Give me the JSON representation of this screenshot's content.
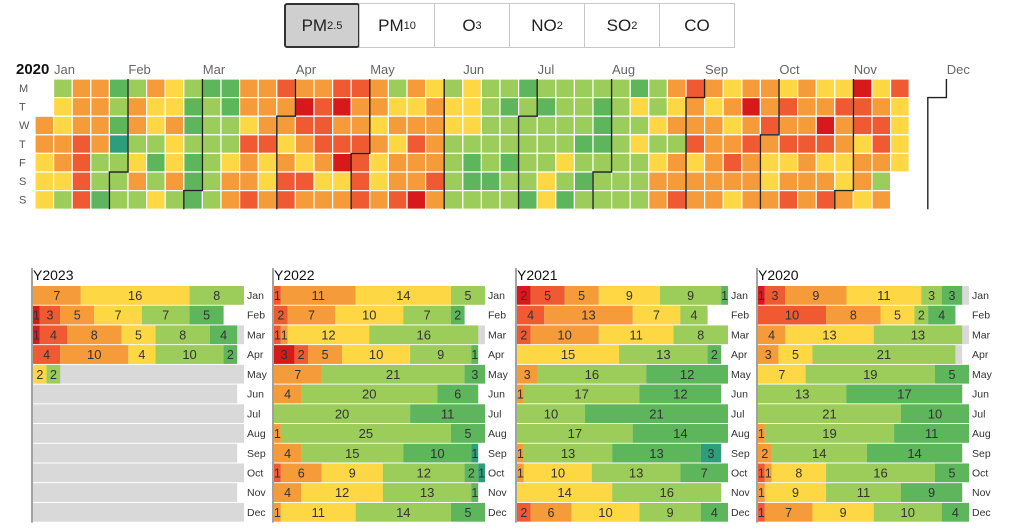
{
  "tabs": [
    {
      "label": "PM",
      "sub": "2.5",
      "active": true
    },
    {
      "label": "PM",
      "sub": "10",
      "active": false
    },
    {
      "label": "O",
      "sub": "3",
      "active": false
    },
    {
      "label": "NO",
      "sub": "2",
      "active": false
    },
    {
      "label": "SO",
      "sub": "2",
      "active": false
    },
    {
      "label": "CO",
      "sub": "",
      "active": false
    }
  ],
  "colors": {
    "c1": "#d7191c",
    "c2": "#ef5a32",
    "c3": "#f59b3a",
    "c4": "#fed844",
    "c5": "#9ccc5a",
    "c6": "#5db55c",
    "c7": "#2e9d7c",
    "empty": "#d9d9d9"
  },
  "calendar": {
    "year": "2020",
    "day_labels": [
      "M",
      "T",
      "W",
      "T",
      "F",
      "S",
      "S"
    ],
    "month_labels": [
      "Jan",
      "Feb",
      "Mar",
      "Apr",
      "May",
      "Jun",
      "Jul",
      "Aug",
      "Sep",
      "Oct",
      "Nov",
      "Dec"
    ],
    "levels": "3344454433453332222333355665675555335435344565444344355665666655555566554333342332333244323343223123423322234321321432332222334344354343323432331433332354455554445665555556556556556555556565554455554565556565566655555555556454555554543334353322332433343333343432343132333332344342324323332333431243242334431224334432235324444"
  },
  "chart_data": {
    "type": "bar",
    "months": [
      "Jan",
      "Feb",
      "Mar",
      "Apr",
      "May",
      "Jun",
      "Jul",
      "Aug",
      "Sep",
      "Oct",
      "Nov",
      "Dec"
    ],
    "levels": [
      "c1",
      "c2",
      "c3",
      "c4",
      "c5",
      "c6",
      "c7"
    ],
    "years": [
      {
        "name": "Y2023",
        "months": [
          [
            0,
            0,
            7,
            16,
            8,
            0,
            0
          ],
          [
            1,
            3,
            5,
            7,
            7,
            5,
            0
          ],
          [
            1,
            4,
            8,
            5,
            8,
            4,
            0
          ],
          [
            0,
            4,
            10,
            4,
            10,
            2,
            0
          ],
          [
            0,
            0,
            0,
            2,
            2,
            0,
            0
          ],
          [
            0,
            0,
            0,
            0,
            0,
            0,
            0
          ],
          [
            0,
            0,
            0,
            0,
            0,
            0,
            0
          ],
          [
            0,
            0,
            0,
            0,
            0,
            0,
            0
          ],
          [
            0,
            0,
            0,
            0,
            0,
            0,
            0
          ],
          [
            0,
            0,
            0,
            0,
            0,
            0,
            0
          ],
          [
            0,
            0,
            0,
            0,
            0,
            0,
            0
          ],
          [
            0,
            0,
            0,
            0,
            0,
            0,
            0
          ]
        ]
      },
      {
        "name": "Y2022",
        "months": [
          [
            0,
            1,
            11,
            14,
            5,
            0,
            0
          ],
          [
            0,
            2,
            7,
            10,
            7,
            2,
            0
          ],
          [
            0,
            1,
            1,
            12,
            16,
            0,
            0
          ],
          [
            3,
            2,
            5,
            10,
            9,
            1,
            0
          ],
          [
            0,
            0,
            7,
            0,
            21,
            3,
            0
          ],
          [
            0,
            0,
            4,
            0,
            20,
            6,
            0
          ],
          [
            0,
            0,
            0,
            0,
            20,
            11,
            0
          ],
          [
            0,
            0,
            1,
            0,
            25,
            5,
            0
          ],
          [
            0,
            0,
            4,
            0,
            15,
            10,
            1
          ],
          [
            0,
            1,
            6,
            9,
            12,
            2,
            1
          ],
          [
            0,
            0,
            4,
            12,
            13,
            1,
            0
          ],
          [
            0,
            0,
            1,
            11,
            14,
            5,
            0
          ]
        ]
      },
      {
        "name": "Y2021",
        "months": [
          [
            2,
            5,
            5,
            9,
            9,
            1,
            0
          ],
          [
            0,
            4,
            13,
            7,
            4,
            0,
            0
          ],
          [
            0,
            2,
            10,
            11,
            8,
            0,
            0
          ],
          [
            0,
            0,
            0,
            15,
            13,
            2,
            0
          ],
          [
            0,
            0,
            3,
            0,
            16,
            12,
            0
          ],
          [
            0,
            0,
            1,
            0,
            17,
            12,
            0
          ],
          [
            0,
            0,
            0,
            0,
            10,
            21,
            0
          ],
          [
            0,
            0,
            0,
            0,
            17,
            14,
            0
          ],
          [
            0,
            0,
            1,
            0,
            13,
            13,
            3
          ],
          [
            0,
            0,
            1,
            10,
            13,
            7,
            0
          ],
          [
            0,
            0,
            0,
            14,
            16,
            0,
            0
          ],
          [
            0,
            2,
            6,
            10,
            9,
            4,
            0
          ]
        ]
      },
      {
        "name": "Y2020",
        "months": [
          [
            1,
            3,
            9,
            11,
            3,
            3,
            0
          ],
          [
            0,
            10,
            8,
            5,
            2,
            4,
            0
          ],
          [
            0,
            0,
            4,
            13,
            13,
            0,
            0
          ],
          [
            0,
            0,
            3,
            5,
            21,
            0,
            0
          ],
          [
            0,
            0,
            0,
            7,
            19,
            5,
            0
          ],
          [
            0,
            0,
            0,
            0,
            13,
            17,
            0
          ],
          [
            0,
            0,
            0,
            0,
            21,
            10,
            0
          ],
          [
            0,
            0,
            1,
            0,
            19,
            11,
            0
          ],
          [
            0,
            0,
            2,
            0,
            14,
            14,
            0
          ],
          [
            0,
            1,
            1,
            8,
            16,
            5,
            0
          ],
          [
            0,
            0,
            1,
            9,
            11,
            9,
            0
          ],
          [
            0,
            1,
            7,
            9,
            10,
            4,
            0
          ]
        ]
      }
    ]
  }
}
